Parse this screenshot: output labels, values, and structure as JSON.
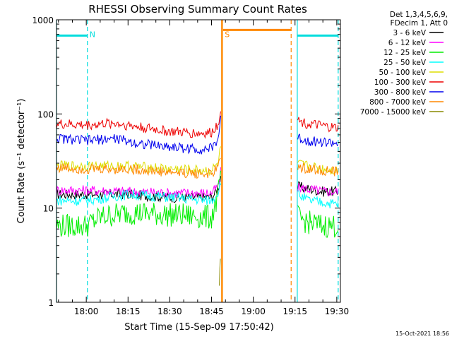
{
  "chart_data": {
    "type": "line",
    "title": "RHESSI Observing Summary Count Rates",
    "xlabel": "Start Time (15-Sep-09 17:50:42)",
    "ylabel": "Count Rate (s⁻¹ detector⁻¹)",
    "y_log": true,
    "ylim": [
      1,
      1000
    ],
    "x_ticks": [
      "18:00",
      "18:15",
      "18:30",
      "18:45",
      "19:00",
      "19:15",
      "19:30"
    ],
    "y_ticks": [
      "1",
      "10",
      "100",
      "1000"
    ],
    "xlim_minutes": [
      -10.7,
      91.3
    ],
    "legend_header": [
      "Det 1,3,4,5,6,9,",
      "FDecim 1, Att 0"
    ],
    "footer_date": "15-Oct-2021 18:56",
    "series": [
      {
        "name": "3 - 6 keV",
        "color": "#000000",
        "segments": [
          {
            "x": [
              -10.7,
              0,
              15,
              30,
              45,
              47.5,
              48.3
            ],
            "y": [
              14,
              14,
              14,
              13,
              13,
              16,
              22
            ]
          },
          {
            "x": [
              76,
              80,
              85,
              90.5
            ],
            "y": [
              17,
              16,
              15,
              15
            ]
          }
        ]
      },
      {
        "name": "6 - 12 keV",
        "color": "#ff00ff",
        "segments": [
          {
            "x": [
              -10.7,
              0,
              15,
              30,
              45,
              47.5,
              48.3
            ],
            "y": [
              15.5,
              15.5,
              15,
              14.5,
              14.5,
              17,
              24
            ]
          },
          {
            "x": [
              76,
              80,
              85,
              90.5
            ],
            "y": [
              16.5,
              16,
              15,
              15
            ]
          }
        ]
      },
      {
        "name": "12 - 25 keV",
        "color": "#00ee00",
        "segments": [
          {
            "x": [
              -10.7,
              0,
              5,
              15,
              30,
              45,
              47.5,
              48.3
            ],
            "y": [
              6.5,
              6.5,
              8,
              9,
              8.5,
              8,
              14,
              25
            ]
          },
          {
            "x": [
              76,
              80,
              85,
              90.5
            ],
            "y": [
              8,
              7,
              6.5,
              6.5
            ]
          }
        ]
      },
      {
        "name": "25 - 50 keV",
        "color": "#00ffff",
        "segments": [
          {
            "x": [
              -10.7,
              0,
              15,
              30,
              45,
              47.5,
              48.3
            ],
            "y": [
              12,
              12,
              14,
              13,
              12,
              15,
              20
            ]
          },
          {
            "x": [
              76,
              80,
              85,
              90.5
            ],
            "y": [
              14,
              12,
              11.5,
              11
            ]
          }
        ]
      },
      {
        "name": "50 - 100 keV",
        "color": "#dddd00",
        "segments": [
          {
            "x": [
              -10.7,
              0,
              15,
              30,
              45,
              47.5,
              48.3
            ],
            "y": [
              28,
              28,
              28,
              26,
              25,
              30,
              45
            ]
          },
          {
            "x": [
              76,
              80,
              85,
              90.5
            ],
            "y": [
              29,
              28,
              26,
              25
            ]
          }
        ]
      },
      {
        "name": "100 - 300 keV",
        "color": "#ee0000",
        "segments": [
          {
            "x": [
              -10.7,
              0,
              10,
              20,
              30,
              40,
              45,
              47.5,
              48.3
            ],
            "y": [
              78,
              76,
              80,
              72,
              65,
              62,
              63,
              80,
              120
            ]
          },
          {
            "x": [
              76,
              80,
              85,
              90.5
            ],
            "y": [
              85,
              78,
              74,
              70
            ]
          }
        ]
      },
      {
        "name": "300 - 800 keV",
        "color": "#0000ee",
        "segments": [
          {
            "x": [
              -10.7,
              0,
              10,
              20,
              30,
              40,
              45,
              47.5,
              48.3
            ],
            "y": [
              55,
              52,
              55,
              48,
              45,
              42,
              43,
              55,
              95
            ]
          },
          {
            "x": [
              76,
              80,
              85,
              90.5
            ],
            "y": [
              55,
              52,
              50,
              49
            ]
          }
        ]
      },
      {
        "name": "800 - 7000 keV",
        "color": "#ff8800",
        "segments": [
          {
            "x": [
              -10.7,
              0,
              15,
              30,
              45,
              47.5,
              48.3
            ],
            "y": [
              27,
              26,
              26,
              24,
              23,
              27,
              38
            ]
          },
          {
            "x": [
              76,
              80,
              85,
              90.5
            ],
            "y": [
              27,
              26,
              25,
              24
            ]
          }
        ]
      },
      {
        "name": "7000 - 15000 keV",
        "color": "#888800",
        "segments": [
          {
            "x": [
              47.8,
              48.0,
              48.2
            ],
            "y": [
              1.5,
              2.3,
              2.9
            ]
          }
        ]
      }
    ],
    "annotations": [
      {
        "label": "N",
        "color": "#00dddd",
        "x": 0.4
      },
      {
        "label": "S",
        "color": "#ff8800",
        "x": 49
      }
    ],
    "state_bars": [
      {
        "color": "#00dddd",
        "x": [
          -10.7,
          0.4
        ],
        "y": 680
      },
      {
        "color": "#ff8800",
        "x": [
          49,
          73.6
        ],
        "y": 780
      },
      {
        "color": "#00dddd",
        "x": [
          75.8,
          90.5
        ],
        "y": 680
      }
    ],
    "vlines": [
      {
        "color": "#00dddd",
        "x": -10.7,
        "dash": false
      },
      {
        "color": "#00dddd",
        "x": 0.4,
        "dash": true
      },
      {
        "color": "#ff8800",
        "x": 48.6,
        "dash": false
      },
      {
        "color": "#ff8800",
        "x": 49,
        "dash": false
      },
      {
        "color": "#ff8800",
        "x": 73.6,
        "dash": true
      },
      {
        "color": "#00dddd",
        "x": 75.8,
        "dash": false
      },
      {
        "color": "#00dddd",
        "x": 90.5,
        "dash": true
      }
    ],
    "grid": false,
    "legend_position": "right"
  }
}
